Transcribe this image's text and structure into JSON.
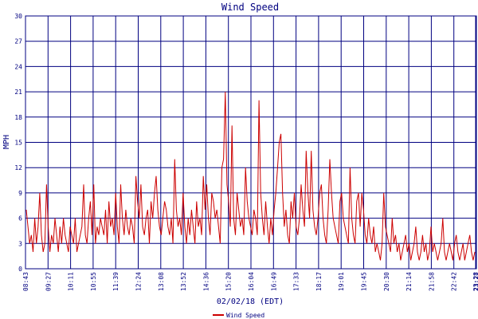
{
  "chart_data": {
    "type": "line",
    "title": "Wind Speed",
    "xlabel": "02/02/18 (EDT)",
    "ylabel": "MPH",
    "ylim": [
      0,
      30
    ],
    "yticks": [
      0,
      3,
      6,
      9,
      12,
      15,
      18,
      21,
      24,
      27,
      30
    ],
    "xticks": [
      "08:43",
      "09:27",
      "10:11",
      "10:55",
      "11:39",
      "12:24",
      "13:08",
      "13:52",
      "14:36",
      "15:20",
      "16:04",
      "16:49",
      "17:33",
      "18:17",
      "19:01",
      "19:45",
      "20:30",
      "21:14",
      "21:58",
      "22:42",
      "23:27",
      "23:28"
    ],
    "grid": true,
    "legend_position": "bottom",
    "colors": {
      "series": "#cc0000",
      "grid": "#000080",
      "frame": "#000080"
    },
    "series": [
      {
        "name": "Wind Speed",
        "x_range": [
          "08:43",
          "23:28"
        ],
        "sample_every_minutes": 4,
        "values": [
          7,
          5,
          3,
          4,
          2,
          6,
          3,
          5,
          9,
          4,
          2,
          3,
          10,
          5,
          2,
          4,
          3,
          6,
          4,
          2,
          5,
          3,
          6,
          4,
          3,
          2,
          5,
          4,
          3,
          6,
          2,
          3,
          4,
          5,
          10,
          4,
          3,
          6,
          8,
          4,
          10,
          3,
          5,
          4,
          6,
          5,
          4,
          7,
          3,
          8,
          5,
          6,
          4,
          9,
          5,
          3,
          10,
          6,
          4,
          7,
          5,
          4,
          6,
          5,
          3,
          11,
          8,
          6,
          10,
          5,
          4,
          6,
          7,
          3,
          8,
          6,
          9,
          11,
          7,
          5,
          4,
          6,
          8,
          7,
          5,
          4,
          6,
          3,
          13,
          7,
          5,
          6,
          4,
          9,
          5,
          3,
          6,
          4,
          7,
          5,
          3,
          8,
          5,
          6,
          4,
          11,
          7,
          10,
          6,
          4,
          9,
          8,
          6,
          7,
          5,
          3,
          12,
          13,
          21,
          10,
          8,
          5,
          17,
          6,
          4,
          9,
          7,
          5,
          6,
          4,
          12,
          8,
          6,
          5,
          4,
          7,
          6,
          4,
          20,
          9,
          6,
          4,
          8,
          5,
          3,
          6,
          4,
          7,
          9,
          12,
          15,
          16,
          9,
          5,
          7,
          4,
          3,
          8,
          6,
          9,
          5,
          4,
          6,
          10,
          7,
          5,
          14,
          9,
          6,
          14,
          7,
          5,
          4,
          6,
          9,
          10,
          6,
          4,
          3,
          7,
          13,
          9,
          6,
          5,
          4,
          3,
          8,
          9,
          6,
          5,
          4,
          3,
          12,
          6,
          4,
          3,
          8,
          9,
          5,
          9,
          7,
          4,
          3,
          6,
          4,
          3,
          5,
          2,
          3,
          2,
          1,
          3,
          9,
          5,
          4,
          3,
          2,
          6,
          3,
          4,
          2,
          3,
          1,
          2,
          3,
          4,
          2,
          3,
          1,
          2,
          3,
          5,
          2,
          1,
          2,
          4,
          2,
          3,
          1,
          2,
          5,
          2,
          3,
          2,
          1,
          2,
          3,
          6,
          2,
          1,
          2,
          3,
          2,
          1,
          3,
          4,
          2,
          1,
          2,
          3,
          1,
          2,
          3,
          4,
          2,
          1,
          2
        ]
      }
    ]
  }
}
